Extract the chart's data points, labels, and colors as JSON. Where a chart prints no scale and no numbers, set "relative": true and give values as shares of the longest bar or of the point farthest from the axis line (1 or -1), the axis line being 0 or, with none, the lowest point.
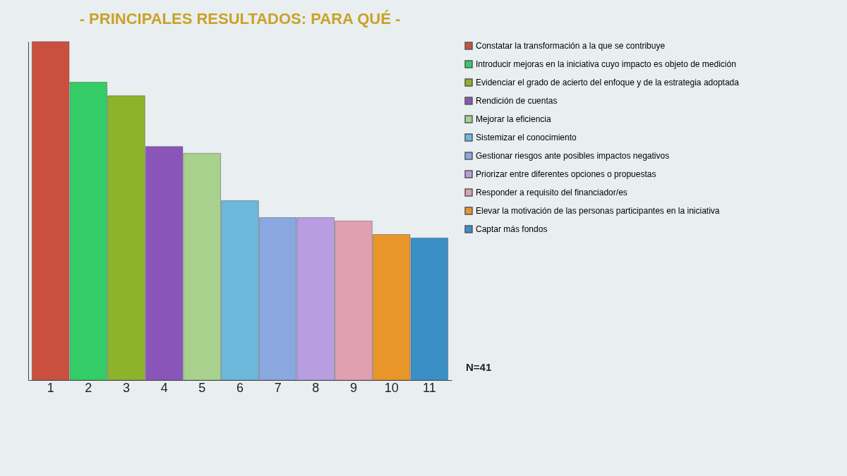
{
  "chart_data": {
    "type": "bar",
    "title": "- PRINCIPALES RESULTADOS: PARA QUÉ -",
    "relative": true,
    "legend": "right",
    "annotations": [
      "N=41"
    ],
    "categories": [
      "1",
      "2",
      "3",
      "4",
      "5",
      "6",
      "7",
      "8",
      "9",
      "10",
      "11"
    ],
    "series": [
      {
        "name": "Constatar la transformación a la que se contribuye",
        "color": "#c9503f",
        "values": [
          1,
          null,
          null,
          null,
          null,
          null,
          null,
          null,
          null,
          null,
          null
        ]
      },
      {
        "name": "Introducir mejoras en la iniciativa cuyo impacto es objeto de medición",
        "color": "#33cc66",
        "values": [
          null,
          0.88,
          null,
          null,
          null,
          null,
          null,
          null,
          null,
          null,
          null
        ]
      },
      {
        "name": "Evidenciar el grado de acierto del enfoque y de la estrategia adoptada",
        "color": "#8db32a",
        "values": [
          null,
          null,
          0.84,
          null,
          null,
          null,
          null,
          null,
          null,
          null,
          null
        ]
      },
      {
        "name": "Rendición de cuentas",
        "color": "#8a55b8",
        "values": [
          null,
          null,
          null,
          0.69,
          null,
          null,
          null,
          null,
          null,
          null,
          null
        ]
      },
      {
        "name": "Mejorar la eficiencia",
        "color": "#a8d18d",
        "values": [
          null,
          null,
          null,
          null,
          0.67,
          null,
          null,
          null,
          null,
          null,
          null
        ]
      },
      {
        "name": "Sistemizar el conocimiento",
        "color": "#6db8dd",
        "values": [
          null,
          null,
          null,
          null,
          null,
          0.53,
          null,
          null,
          null,
          null,
          null
        ]
      },
      {
        "name": "Gestionar riesgos ante posibles impactos negativos",
        "color": "#8aa8e0",
        "values": [
          null,
          null,
          null,
          null,
          null,
          null,
          0.48,
          null,
          null,
          null,
          null
        ]
      },
      {
        "name": "Priorizar entre diferentes opciones o propuestas",
        "color": "#b89ee0",
        "values": [
          null,
          null,
          null,
          null,
          null,
          null,
          null,
          0.48,
          null,
          null,
          null
        ]
      },
      {
        "name": "Responder a requisito del financiador/es",
        "color": "#e0a0b0",
        "values": [
          null,
          null,
          null,
          null,
          null,
          null,
          null,
          null,
          0.47,
          null,
          null
        ]
      },
      {
        "name": "Elevar la motivación de las personas participantes en la iniciativa",
        "color": "#e8962a",
        "values": [
          null,
          null,
          null,
          null,
          null,
          null,
          null,
          null,
          null,
          0.43,
          null
        ]
      },
      {
        "name": "Captar más fondos",
        "color": "#3a8fc7",
        "values": [
          null,
          null,
          null,
          null,
          null,
          null,
          null,
          null,
          null,
          null,
          0.42
        ]
      }
    ]
  }
}
